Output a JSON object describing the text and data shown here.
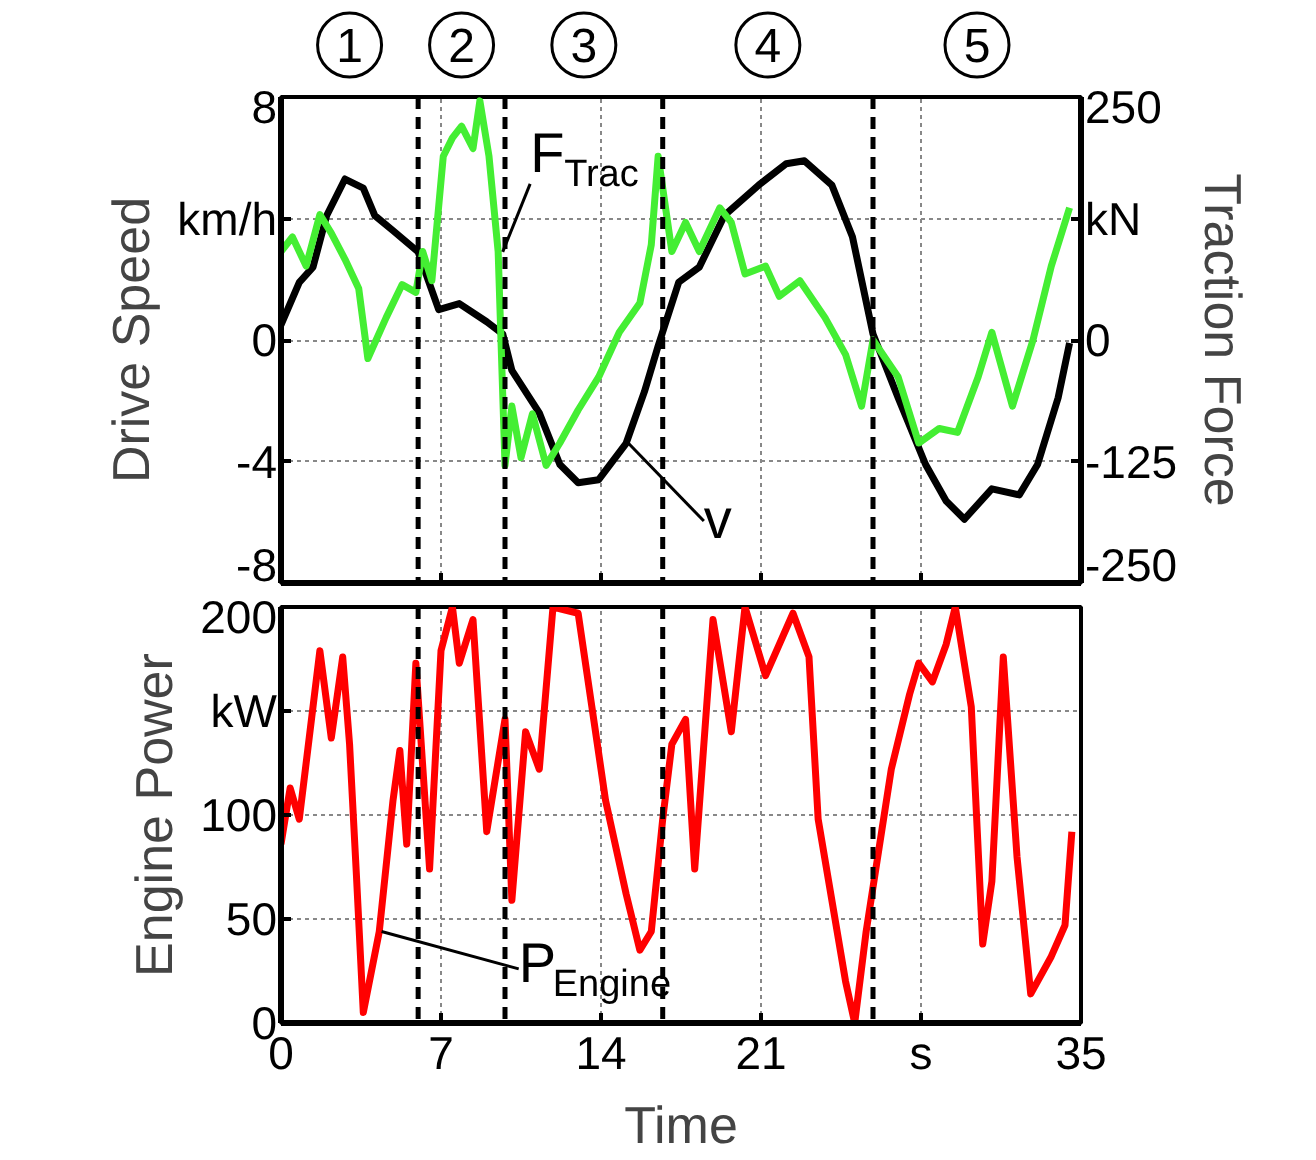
{
  "chart_data": [
    {
      "type": "line",
      "ylabel": "Drive Speed",
      "y2label": "Traction Force",
      "annotations": [
        "1",
        "2",
        "3",
        "4",
        "5",
        {
          "text": "F$_{Trac}$",
          "x": 9.7,
          "y": 2.9
        },
        {
          "text": "v",
          "x": 15.2,
          "y": -3.4
        }
      ],
      "xlim": [
        0,
        35
      ],
      "xticks": [
        {
          "value": 0,
          "label": null
        },
        {
          "value": 7,
          "label": null
        },
        {
          "value": 14,
          "label": null
        },
        {
          "value": 21,
          "label": null
        },
        {
          "value": 28,
          "label": null
        },
        {
          "value": 35,
          "label": null
        }
      ],
      "ylim": [
        -8,
        8
      ],
      "yticks": [
        -8,
        -4,
        0,
        {
          "value": 4,
          "label": "km/h"
        },
        8
      ],
      "y2lim": [
        -250,
        250
      ],
      "y2ticks": [
        -250,
        -125,
        0,
        {
          "value": 125,
          "label": "kN"
        },
        250
      ],
      "tick_labels": "y",
      "grid": true,
      "line_style": "solid",
      "ref_lines": [
        {
          "axis": "x",
          "value": 6.0,
          "color": "#000000",
          "line_style": "dashed"
        },
        {
          "axis": "x",
          "value": 9.8,
          "color": "#000000",
          "line_style": "dashed"
        },
        {
          "axis": "x",
          "value": 16.7,
          "color": "#000000",
          "line_style": "dashed"
        },
        {
          "axis": "x",
          "value": 25.9,
          "color": "#000000",
          "line_style": "dashed"
        }
      ],
      "series": [
        {
          "color": "#000000",
          "x": [
            0,
            0.8,
            1.4,
            2.0,
            2.8,
            3.6,
            4.1,
            4.9,
            6.0,
            6.9,
            7.8,
            9.0,
            9.7,
            10.1,
            11.3,
            12.2,
            13.0,
            13.9,
            15.1,
            15.9,
            16.5,
            17.4,
            18.3,
            19.4,
            20.9,
            22.1,
            22.9,
            24.1,
            25.0,
            25.9,
            27.0,
            28.2,
            29.1,
            29.9,
            31.1,
            32.3,
            33.1,
            34.0,
            34.5
          ],
          "values": [
            0.5,
            1.9,
            2.4,
            4.1,
            5.3,
            5.0,
            4.1,
            3.6,
            2.9,
            1.0,
            1.2,
            0.6,
            0.2,
            -1.0,
            -2.4,
            -4.1,
            -4.7,
            -4.6,
            -3.4,
            -1.7,
            -0.2,
            1.9,
            2.4,
            4.1,
            5.1,
            5.8,
            5.9,
            5.1,
            3.4,
            0.2,
            -1.9,
            -4.1,
            -5.3,
            -5.9,
            -4.9,
            -5.1,
            -4.1,
            -1.9,
            -0.1
          ]
        },
        {
          "color": "#44ee33",
          "axis": "y2",
          "x": [
            0,
            0.5,
            1.1,
            1.7,
            2.2,
            2.8,
            3.4,
            3.8,
            4.6,
            5.3,
            5.9,
            6.2,
            6.6,
            7.1,
            7.5,
            7.9,
            8.4,
            8.7,
            9.1,
            9.5,
            9.8,
            10.1,
            10.5,
            11.0,
            11.6,
            12.2,
            13.0,
            13.9,
            14.8,
            15.7,
            16.2,
            16.5,
            17.1,
            17.7,
            18.3,
            19.2,
            19.7,
            20.3,
            21.2,
            21.8,
            22.7,
            23.8,
            24.7,
            25.4,
            25.9,
            27.0,
            27.9,
            28.8,
            29.6,
            30.5,
            31.1,
            32.0,
            32.9,
            33.7,
            34.5
          ],
          "values": [
            91,
            106,
            76,
            129,
            110,
            83,
            53,
            -19,
            23,
            57,
            49,
            91,
            61,
            189,
            208,
            220,
            197,
            246,
            189,
            91,
            -129,
            -68,
            -121,
            -76,
            -129,
            -106,
            -72,
            -38,
            8,
            38,
            98,
            189,
            91,
            121,
            91,
            136,
            121,
            68,
            76,
            45,
            61,
            23,
            -15,
            -68,
            0,
            -38,
            -106,
            -91,
            -95,
            -38,
            8,
            -68,
            0,
            76,
            136
          ]
        }
      ]
    },
    {
      "type": "line",
      "xlabel": "Time",
      "ylabel": "Engine Power",
      "annotations": [
        {
          "text": "P$_{Engine}$",
          "x": 4.4,
          "y": 44
        }
      ],
      "xlim": [
        0,
        35
      ],
      "xticks": [
        0,
        7,
        14,
        21,
        {
          "value": 28,
          "label": "s"
        },
        35
      ],
      "ylim": [
        0,
        200
      ],
      "yticks": [
        0,
        50,
        100,
        {
          "value": 150,
          "label": "kW"
        },
        200
      ],
      "grid": true,
      "line_style": "solid",
      "ref_lines": [
        {
          "axis": "x",
          "value": 6.0,
          "color": "#000000",
          "line_style": "dashed"
        },
        {
          "axis": "x",
          "value": 9.8,
          "color": "#000000",
          "line_style": "dashed"
        },
        {
          "axis": "x",
          "value": 16.7,
          "color": "#000000",
          "line_style": "dashed"
        },
        {
          "axis": "x",
          "value": 25.9,
          "color": "#000000",
          "line_style": "dashed"
        }
      ],
      "series": [
        {
          "color": "#ff0000",
          "x": [
            0,
            0.4,
            0.8,
            1.1,
            1.7,
            2.2,
            2.7,
            3.0,
            3.3,
            3.6,
            4.3,
            4.9,
            5.2,
            5.5,
            5.9,
            6.5,
            7.0,
            7.5,
            7.8,
            8.4,
            9.0,
            9.8,
            10.1,
            10.7,
            11.3,
            11.9,
            13.0,
            13.6,
            14.2,
            15.1,
            15.7,
            16.2,
            16.7,
            17.1,
            17.7,
            18.1,
            18.9,
            19.7,
            20.3,
            21.2,
            22.4,
            23.1,
            23.5,
            24.7,
            25.1,
            25.6,
            26.7,
            27.5,
            27.9,
            28.5,
            29.1,
            29.5,
            30.2,
            30.7,
            31.1,
            31.6,
            32.2,
            32.8,
            33.7,
            34.3,
            34.6
          ],
          "values": [
            86,
            113,
            98,
            125,
            179,
            137,
            176,
            134,
            71,
            5,
            44,
            107,
            131,
            86,
            173,
            74,
            179,
            200,
            173,
            194,
            92,
            146,
            59,
            140,
            122,
            200,
            197,
            152,
            107,
            62,
            35,
            44,
            98,
            134,
            146,
            74,
            194,
            140,
            200,
            167,
            197,
            176,
            98,
            20,
            0,
            44,
            122,
            158,
            173,
            164,
            182,
            200,
            152,
            38,
            68,
            176,
            80,
            14,
            32,
            47,
            92
          ]
        }
      ]
    }
  ]
}
